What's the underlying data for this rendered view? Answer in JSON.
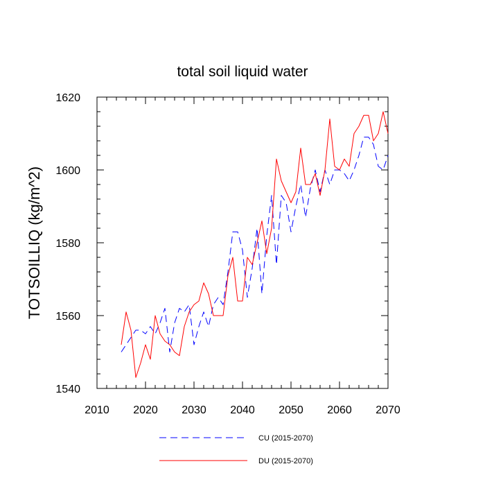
{
  "chart_data": {
    "type": "line",
    "title": "total soil liquid water",
    "xlabel": "",
    "ylabel": "TOTSOILLIQ  (kg/m^2)",
    "xlim": [
      2010,
      2070
    ],
    "ylim": [
      1540,
      1620
    ],
    "xticks": [
      2010,
      2020,
      2030,
      2040,
      2050,
      2060,
      2070
    ],
    "yticks": [
      1540,
      1560,
      1580,
      1600,
      1620
    ],
    "x": [
      2015,
      2016,
      2017,
      2018,
      2019,
      2020,
      2021,
      2022,
      2023,
      2024,
      2025,
      2026,
      2027,
      2028,
      2029,
      2030,
      2031,
      2032,
      2033,
      2034,
      2035,
      2036,
      2037,
      2038,
      2039,
      2040,
      2041,
      2042,
      2043,
      2044,
      2045,
      2046,
      2047,
      2048,
      2049,
      2050,
      2051,
      2052,
      2053,
      2054,
      2055,
      2056,
      2057,
      2058,
      2059,
      2060,
      2061,
      2062,
      2063,
      2064,
      2065,
      2066,
      2067,
      2068,
      2069,
      2070
    ],
    "series": [
      {
        "name": "CU (2015-2070)",
        "color": "#0000ff",
        "dash": "dashed",
        "values": [
          1550,
          1552,
          1554,
          1556,
          1556,
          1555,
          1557,
          1555,
          1558,
          1562,
          1550,
          1558,
          1562,
          1561,
          1563,
          1552,
          1557,
          1561,
          1557,
          1563,
          1565,
          1563,
          1572,
          1583,
          1583,
          1578,
          1565,
          1573,
          1584,
          1566,
          1582,
          1593,
          1574,
          1593,
          1591,
          1583,
          1590,
          1596,
          1587,
          1595,
          1600,
          1594,
          1600,
          1596,
          1600,
          1600,
          1599,
          1597,
          1600,
          1604,
          1609,
          1609,
          1607,
          1601,
          1600,
          1604
        ]
      },
      {
        "name": "DU (2015-2070)",
        "color": "#ff0000",
        "dash": "solid",
        "values": [
          1552,
          1561,
          1556,
          1543,
          1547,
          1552,
          1548,
          1560,
          1555,
          1553,
          1552,
          1550,
          1549,
          1557,
          1561,
          1563,
          1564,
          1569,
          1566,
          1560,
          1560,
          1560,
          1571,
          1576,
          1564,
          1564,
          1576,
          1574,
          1580,
          1586,
          1577,
          1584,
          1603,
          1597,
          1594,
          1591,
          1594,
          1606,
          1596,
          1596,
          1599,
          1593,
          1600,
          1614,
          1601,
          1600,
          1603,
          1601,
          1610,
          1612,
          1615,
          1615,
          1608,
          1610,
          1616,
          1610
        ]
      }
    ],
    "legend_position": "bottom"
  }
}
